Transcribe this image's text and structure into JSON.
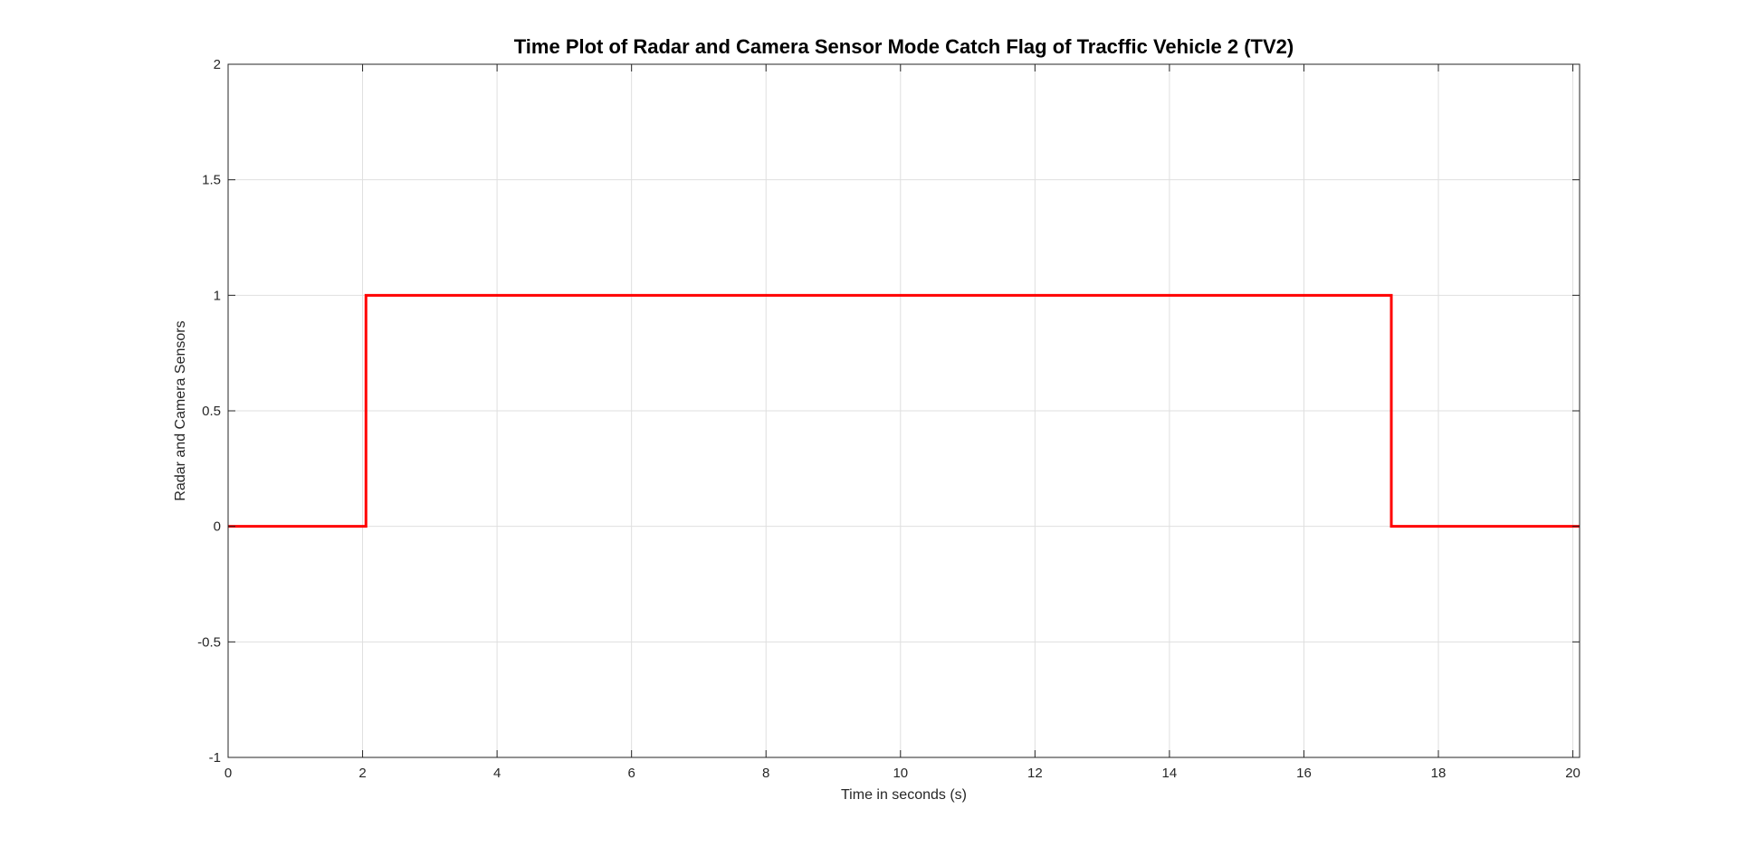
{
  "chart_data": {
    "type": "line",
    "title": "Time Plot of Radar and Camera Sensor Mode Catch Flag of Tracffic Vehicle 2 (TV2)",
    "xlabel": "Time in seconds (s)",
    "ylabel": "Radar and Camera Sensors",
    "xlim": [
      0,
      20.1
    ],
    "ylim": [
      -1,
      2
    ],
    "x_ticks": [
      0,
      2,
      4,
      6,
      8,
      10,
      12,
      14,
      16,
      18,
      20
    ],
    "x_tick_labels": [
      "0",
      "2",
      "4",
      "6",
      "8",
      "10",
      "12",
      "14",
      "16",
      "18",
      "20"
    ],
    "y_ticks": [
      -1,
      -0.5,
      0,
      0.5,
      1,
      1.5,
      2
    ],
    "y_tick_labels": [
      "-1",
      "-0.5",
      "0",
      "0.5",
      "1",
      "1.5",
      "2"
    ],
    "grid": true,
    "series": [
      {
        "color": "#ff0000",
        "step": true,
        "x": [
          0,
          2.05,
          2.05,
          17.3,
          17.3,
          20.1
        ],
        "y": [
          0,
          0,
          1,
          1,
          0,
          0
        ]
      }
    ]
  }
}
